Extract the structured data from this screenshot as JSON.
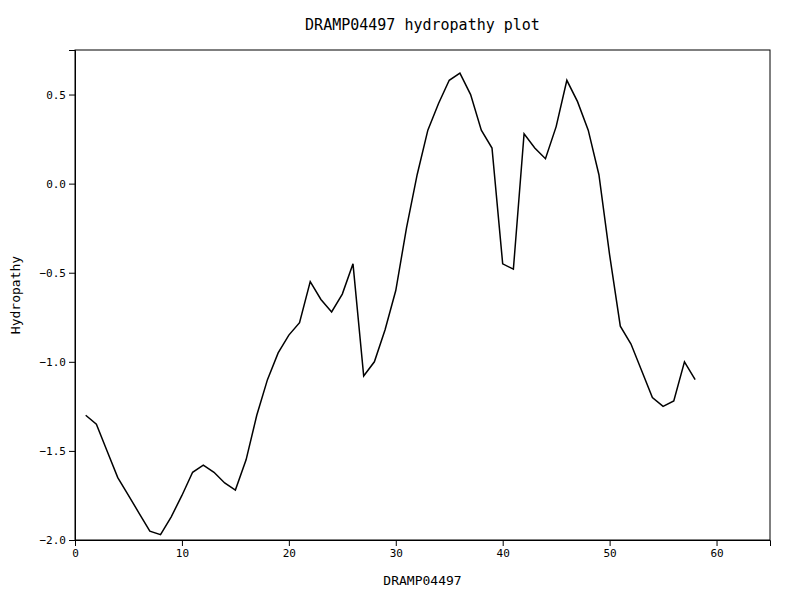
{
  "chart_data": {
    "type": "line",
    "title": "DRAMP04497 hydropathy plot",
    "xlabel": "DRAMP04497",
    "ylabel": "Hydropathy",
    "xlim": [
      0,
      65
    ],
    "ylim": [
      -2.0,
      0.75
    ],
    "xticks": [
      0,
      10,
      20,
      30,
      40,
      50,
      60
    ],
    "yticks": [
      {
        "value": -2.0,
        "label": "−2.0"
      },
      {
        "value": -1.5,
        "label": "−1.5"
      },
      {
        "value": -1.0,
        "label": "−1.0"
      },
      {
        "value": -0.5,
        "label": "−0.5"
      },
      {
        "value": 0.0,
        "label": "0.0"
      },
      {
        "value": 0.5,
        "label": "0.5"
      }
    ],
    "color": "#000000",
    "grid": false,
    "x": [
      1,
      2,
      3,
      4,
      5,
      6,
      7,
      8,
      9,
      10,
      11,
      12,
      13,
      14,
      15,
      16,
      17,
      18,
      19,
      20,
      21,
      22,
      23,
      24,
      25,
      26,
      27,
      28,
      29,
      30,
      31,
      32,
      33,
      34,
      35,
      36,
      37,
      38,
      39,
      40,
      41,
      42,
      43,
      44,
      45,
      46,
      47,
      48,
      49,
      50,
      51,
      52,
      53,
      54,
      55,
      56,
      57,
      58
    ],
    "values": [
      -1.3,
      -1.35,
      -1.5,
      -1.65,
      -1.75,
      -1.85,
      -1.95,
      -1.97,
      -1.87,
      -1.75,
      -1.62,
      -1.58,
      -1.62,
      -1.68,
      -1.72,
      -1.55,
      -1.3,
      -1.1,
      -0.95,
      -0.85,
      -0.78,
      -0.55,
      -0.65,
      -0.72,
      -0.62,
      -0.45,
      -1.08,
      -1.0,
      -0.82,
      -0.6,
      -0.25,
      0.05,
      0.3,
      0.45,
      0.58,
      0.62,
      0.5,
      0.3,
      0.2,
      -0.45,
      -0.48,
      0.28,
      0.2,
      0.14,
      0.32,
      0.58,
      0.46,
      0.3,
      0.05,
      -0.4,
      -0.8,
      -0.9,
      -1.05,
      -1.2,
      -1.25,
      -1.22,
      -1.0,
      -1.1
    ]
  }
}
